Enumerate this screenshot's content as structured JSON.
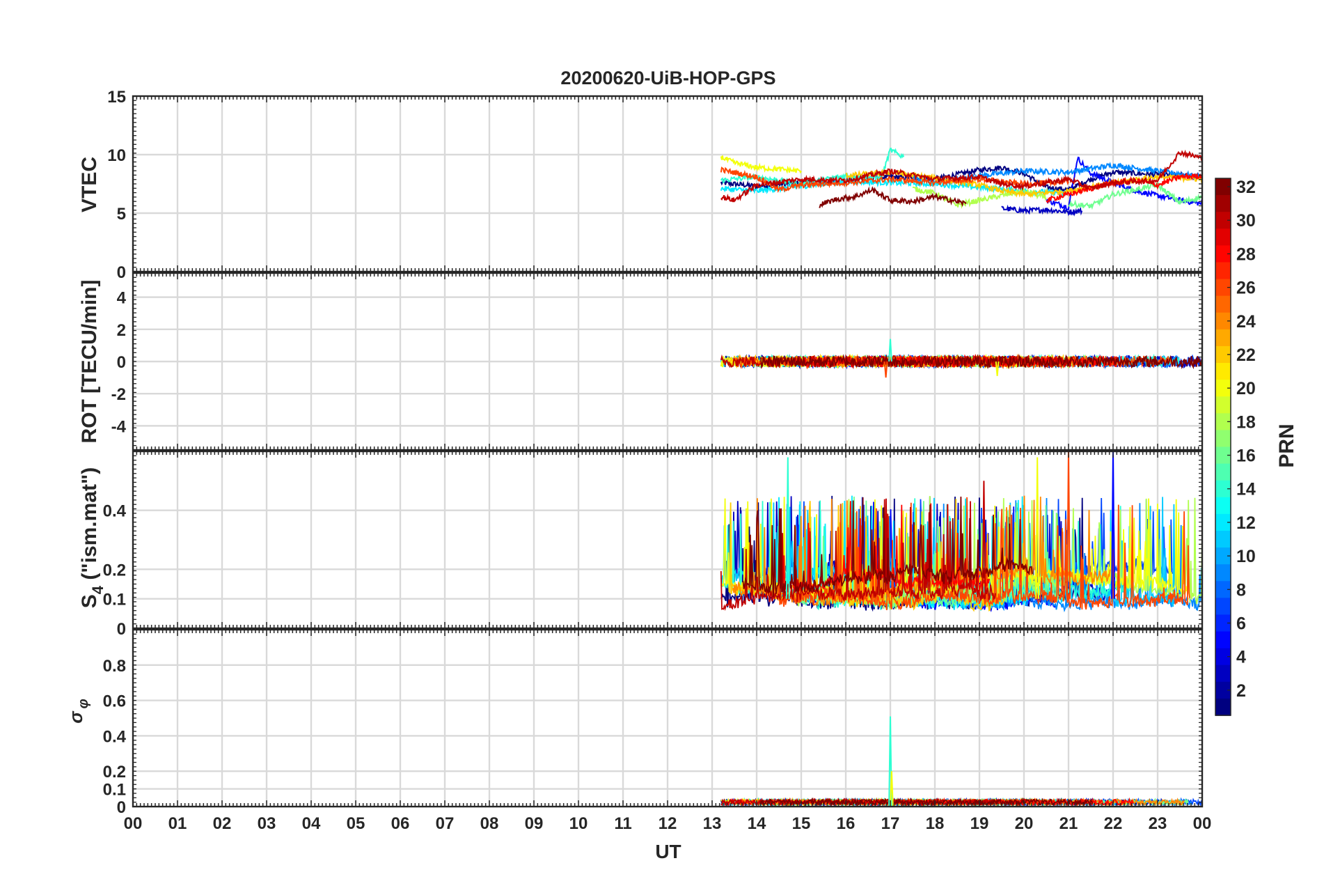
{
  "chart_data": {
    "type": "line",
    "title": "20200620-UiB-HOP-GPS",
    "xlabel": "UT",
    "x_ticks": [
      "00",
      "01",
      "02",
      "03",
      "04",
      "05",
      "06",
      "07",
      "08",
      "09",
      "10",
      "11",
      "12",
      "13",
      "14",
      "15",
      "16",
      "17",
      "18",
      "19",
      "20",
      "21",
      "22",
      "23",
      "00"
    ],
    "xlim": [
      0,
      24
    ],
    "data_start_hour": 13.2,
    "grid": true,
    "colorbar": {
      "label": "PRN",
      "range": [
        1,
        32
      ],
      "ticks": [
        "32",
        "30",
        "28",
        "26",
        "24",
        "22",
        "20",
        "18",
        "16",
        "14",
        "12",
        "10",
        "8",
        "6",
        "4",
        "2"
      ],
      "colormap": "jet"
    },
    "panels": [
      {
        "ylabel": "VTEC",
        "ylim": [
          0,
          15
        ],
        "y_ticks": [
          "0",
          "5",
          "10",
          "15"
        ],
        "series": [
          {
            "prn": 1,
            "x": [
              13.2,
              14.0,
              15.0,
              16.0,
              16.5,
              17.0,
              18.0,
              19.0,
              19.5,
              20.0,
              20.5,
              21.0,
              21.5,
              22.0,
              23.0,
              24.0
            ],
            "y": [
              7.6,
              7.3,
              7.6,
              7.8,
              8.0,
              8.1,
              7.9,
              8.7,
              8.9,
              8.4,
              7.2,
              7.0,
              7.9,
              8.5,
              8.3,
              8.1
            ]
          },
          {
            "prn": 3,
            "x": [
              19.5,
              20.0,
              20.5,
              21.0,
              21.3
            ],
            "y": [
              5.4,
              5.2,
              5.3,
              5.1,
              5.2
            ]
          },
          {
            "prn": 5,
            "x": [
              20.5,
              21.0,
              21.2,
              21.5,
              22.0,
              22.5,
              23.0,
              23.5,
              24.0
            ],
            "y": [
              6.1,
              5.5,
              9.7,
              8.4,
              7.6,
              6.9,
              6.5,
              6.1,
              5.8
            ]
          },
          {
            "prn": 9,
            "x": [
              17.5,
              18.0,
              19.0,
              20.0,
              21.0,
              22.0,
              23.0,
              24.0
            ],
            "y": [
              8.1,
              7.6,
              8.2,
              8.6,
              8.5,
              9.1,
              8.6,
              8.1
            ]
          },
          {
            "prn": 12,
            "x": [
              13.2,
              14.0,
              15.0,
              16.0,
              17.0,
              18.0,
              19.0,
              20.0,
              21.0
            ],
            "y": [
              7.1,
              6.9,
              7.3,
              7.7,
              7.6,
              7.5,
              7.2,
              6.9,
              6.7
            ]
          },
          {
            "prn": 14,
            "x": [
              13.2,
              14.0,
              15.0,
              16.0,
              16.8,
              17.0,
              17.3
            ],
            "y": [
              7.8,
              8.1,
              7.5,
              8.2,
              8.0,
              10.4,
              9.8
            ]
          },
          {
            "prn": 16,
            "x": [
              21.0,
              21.5,
              22.0,
              23.0,
              23.5,
              24.0
            ],
            "y": [
              5.8,
              5.6,
              6.6,
              7.4,
              5.9,
              6.4
            ]
          },
          {
            "prn": 18,
            "x": [
              17.5,
              18.0,
              18.5,
              19.0,
              20.0,
              20.5
            ],
            "y": [
              7.1,
              6.7,
              5.7,
              6.1,
              6.9,
              6.3
            ]
          },
          {
            "prn": 20,
            "x": [
              13.2,
              13.5,
              14.0,
              15.0
            ],
            "y": [
              9.8,
              9.3,
              8.9,
              8.6
            ]
          },
          {
            "prn": 22,
            "x": [
              16.0,
              17.0,
              18.0,
              19.0,
              19.5,
              20.0,
              21.0,
              22.0,
              23.0,
              24.0
            ],
            "y": [
              8.2,
              8.5,
              8.0,
              7.4,
              6.9,
              6.6,
              6.9,
              7.6,
              8.1,
              7.9
            ]
          },
          {
            "prn": 26,
            "x": [
              13.2,
              14.0,
              14.5,
              15.0,
              16.0,
              17.0,
              18.0,
              19.0,
              20.0,
              21.0
            ],
            "y": [
              8.7,
              8.1,
              7.0,
              7.4,
              7.6,
              7.9,
              7.6,
              7.9,
              7.5,
              7.7
            ]
          },
          {
            "prn": 28,
            "x": [
              20.5,
              21.0,
              21.5,
              22.0,
              22.5,
              23.0,
              23.5,
              24.0
            ],
            "y": [
              6.1,
              6.6,
              7.1,
              7.6,
              7.8,
              7.4,
              8.1,
              8.2
            ]
          },
          {
            "prn": 30,
            "x": [
              13.2,
              13.5,
              14.0,
              15.0,
              16.0,
              17.0,
              18.0,
              19.0,
              19.5,
              20.0,
              20.5,
              21.0,
              21.5,
              22.0,
              23.0,
              23.5,
              24.0
            ],
            "y": [
              6.4,
              6.1,
              7.4,
              7.9,
              7.8,
              8.6,
              7.9,
              8.1,
              7.5,
              7.3,
              7.6,
              7.9,
              7.1,
              7.6,
              7.8,
              10.2,
              9.7
            ]
          },
          {
            "prn": 32,
            "x": [
              15.4,
              15.8,
              16.2,
              16.6,
              17.0,
              17.5,
              18.0,
              18.5,
              18.7
            ],
            "y": [
              5.7,
              6.2,
              6.4,
              7.0,
              6.1,
              6.0,
              6.4,
              6.0,
              5.8
            ]
          }
        ]
      },
      {
        "ylabel": "ROT [TECU/min]",
        "ylim": [
          -5.5,
          5.5
        ],
        "y_ticks": [
          "-4",
          "-2",
          "0",
          "2",
          "4"
        ],
        "noise": {
          "x_range": [
            13.2,
            24
          ],
          "amplitude": 0.35
        },
        "spikes": [
          {
            "x": 17.0,
            "y": 1.4
          },
          {
            "x": 19.4,
            "y": -0.9
          },
          {
            "x": 16.9,
            "y": -1.0
          }
        ]
      },
      {
        "ylabel": "S4 (\"ism.mat\")",
        "ylabel_main": "S",
        "ylabel_sub": "4",
        "ylabel_rest": " (\"ism.mat\")",
        "ylim": [
          0,
          0.6
        ],
        "y_ticks": [
          "0",
          "0.1",
          "0.2",
          "0.4"
        ],
        "noise": {
          "x_range": [
            13.2,
            24
          ],
          "base": [
            0.06,
            0.15
          ],
          "peak": 0.45
        },
        "spikes": [
          {
            "x": 14.7,
            "y": 0.58
          },
          {
            "x": 20.3,
            "y": 0.58
          },
          {
            "x": 21.0,
            "y": 0.6
          },
          {
            "x": 22.0,
            "y": 0.6
          },
          {
            "x": 19.1,
            "y": 0.5
          }
        ]
      },
      {
        "ylabel": "σ φ",
        "ylabel_main": "σ",
        "ylabel_sub": "φ",
        "ylim": [
          0,
          1.0
        ],
        "y_ticks": [
          "0",
          "0.1",
          "0.2",
          "0.4",
          "0.6",
          "0.8"
        ],
        "noise": {
          "x_range": [
            13.2,
            24
          ],
          "amplitude": 0.03
        },
        "spikes": [
          {
            "x": 17.0,
            "y": 0.51
          },
          {
            "x": 17.03,
            "y": 0.2
          }
        ]
      }
    ]
  }
}
